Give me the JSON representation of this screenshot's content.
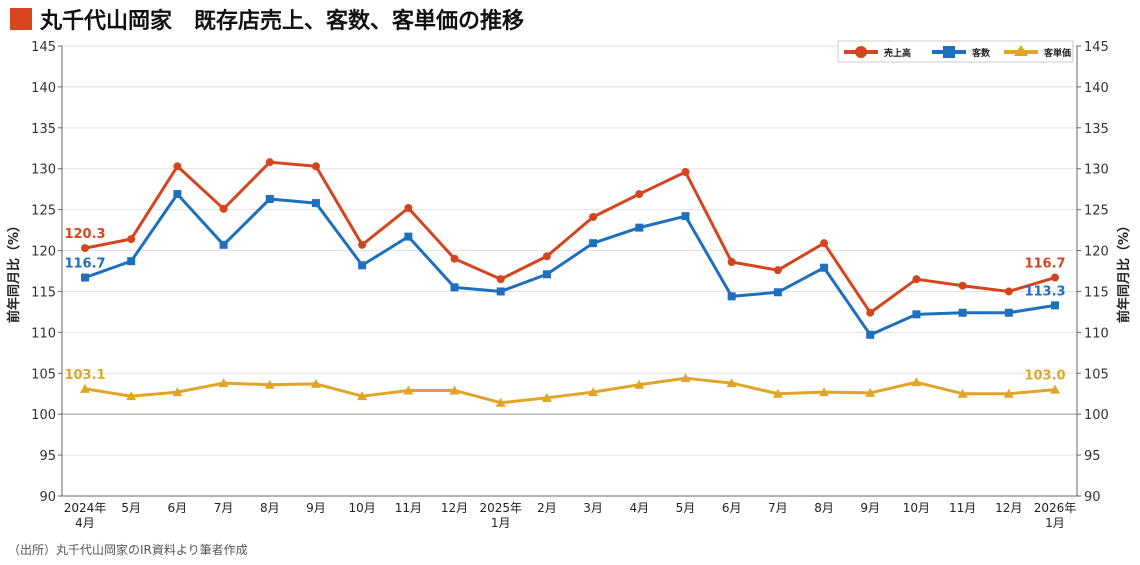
{
  "title": "丸千代山岡家　既存店売上、客数、客単価の推移",
  "source": "（出所）丸千代山岡家のIR資料より筆者作成",
  "chart_data": {
    "type": "line",
    "title": "丸千代山岡家　既存店売上、客数、客単価の推移",
    "ylabel": "前年同月比（%）",
    "ylabel_right": "前年同月比（%）",
    "ylim": [
      90,
      145
    ],
    "yticks": [
      90,
      95,
      100,
      105,
      110,
      115,
      120,
      125,
      130,
      135,
      140,
      145
    ],
    "grid": true,
    "legend_position": "top-right",
    "categories": [
      "2024年\n4月",
      "5月",
      "6月",
      "7月",
      "8月",
      "9月",
      "10月",
      "11月",
      "12月",
      "2025年\n1月",
      "2月",
      "3月",
      "4月",
      "5月",
      "6月",
      "7月",
      "8月",
      "9月",
      "10月",
      "11月",
      "12月",
      "2026年\n1月"
    ],
    "series": [
      {
        "name": "売上高",
        "color": "#d4451f",
        "marker": "circle",
        "values": [
          120.3,
          121.4,
          130.3,
          125.1,
          130.8,
          130.3,
          120.7,
          125.2,
          119.0,
          116.5,
          119.3,
          124.1,
          126.9,
          129.6,
          118.6,
          117.6,
          120.9,
          112.4,
          116.5,
          115.7,
          115.0,
          116.7
        ]
      },
      {
        "name": "客数",
        "color": "#1f6fbf",
        "marker": "square",
        "values": [
          116.7,
          118.7,
          126.9,
          120.7,
          126.3,
          125.8,
          118.2,
          121.7,
          115.5,
          115.0,
          117.1,
          120.9,
          122.8,
          124.2,
          114.4,
          114.9,
          117.9,
          109.7,
          112.2,
          112.4,
          112.4,
          113.3
        ]
      },
      {
        "name": "客単価",
        "color": "#e0a526",
        "marker": "triangle",
        "values": [
          103.1,
          102.2,
          102.7,
          103.8,
          103.6,
          103.7,
          102.2,
          102.9,
          102.9,
          101.4,
          102.0,
          102.7,
          103.6,
          104.4,
          103.8,
          102.5,
          102.7,
          102.6,
          103.9,
          102.5,
          102.5,
          103.0
        ]
      }
    ],
    "annotations": [
      {
        "series": 0,
        "index": 0,
        "text": "120.3"
      },
      {
        "series": 1,
        "index": 0,
        "text": "116.7"
      },
      {
        "series": 2,
        "index": 0,
        "text": "103.1"
      },
      {
        "series": 0,
        "index": 21,
        "text": "116.7"
      },
      {
        "series": 1,
        "index": 21,
        "text": "113.3"
      },
      {
        "series": 2,
        "index": 21,
        "text": "103.0"
      }
    ]
  }
}
